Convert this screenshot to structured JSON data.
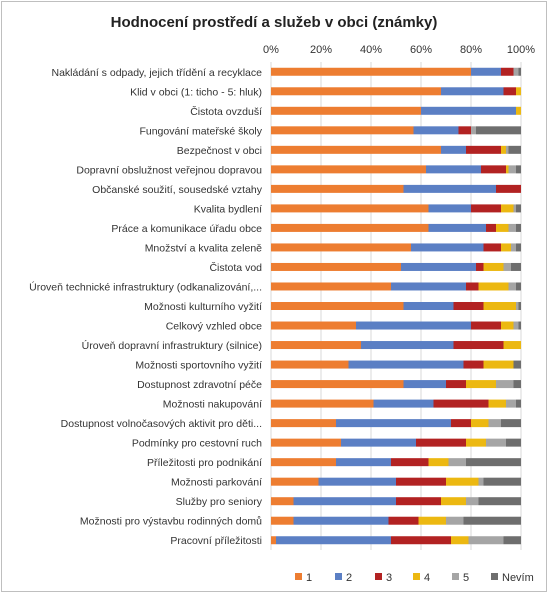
{
  "chart_data": {
    "type": "bar",
    "orientation": "horizontal",
    "stacked": "percent",
    "title": "Hodnocení prostředí a služeb v obci (známky)",
    "x_ticks": [
      "0%",
      "20%",
      "40%",
      "60%",
      "80%",
      "100%"
    ],
    "xlim": [
      0,
      100
    ],
    "grid": true,
    "legend_position": "bottom",
    "categories": [
      "Nakládání s odpady, jejich třídění a recyklace",
      "Klid v obci (1: ticho - 5: hluk)",
      "Čistota ovzduší",
      "Fungování mateřské školy",
      "Bezpečnost v obci",
      "Dopravní obslužnost veřejnou dopravou",
      "Občanské soužití, sousedské vztahy",
      "Kvalita bydlení",
      "Práce a komunikace úřadu obce",
      "Množství a kvalita zeleně",
      "Čistota vod",
      "Úroveň technické infrastruktury (odkanalizování,...",
      "Možnosti kulturního vyžití",
      "Celkový vzhled obce",
      "Úroveň dopravní infrastruktury (silnice)",
      "Možnosti sportovního vyžití",
      "Dostupnost zdravotní péče",
      "Možnosti nakupování",
      "Dostupnost volnočasových aktivit pro děti...",
      "Podmínky pro cestovní ruch",
      "Příležitosti pro podnikání",
      "Možnosti parkování",
      "Služby pro seniory",
      "Možnosti pro výstavbu rodinných domů",
      "Pracovní příležitosti"
    ],
    "series": [
      {
        "name": "1",
        "color": "#ed7d31",
        "values": [
          80,
          68,
          60,
          57,
          68,
          62,
          53,
          63,
          63,
          56,
          52,
          48,
          53,
          34,
          36,
          31,
          53,
          41,
          26,
          28,
          26,
          19,
          9,
          9,
          2
        ]
      },
      {
        "name": "2",
        "color": "#5b7fc4",
        "values": [
          12,
          25,
          38,
          18,
          10,
          22,
          37,
          17,
          23,
          29,
          30,
          30,
          20,
          46,
          37,
          46,
          17,
          24,
          46,
          30,
          22,
          31,
          41,
          38,
          46
        ]
      },
      {
        "name": "3",
        "color": "#b22222",
        "values": [
          5,
          5,
          0,
          5,
          14,
          10,
          10,
          12,
          4,
          7,
          3,
          5,
          12,
          12,
          20,
          8,
          8,
          22,
          8,
          20,
          15,
          20,
          18,
          12,
          24
        ]
      },
      {
        "name": "4",
        "color": "#ecb811",
        "values": [
          0,
          2,
          2,
          0,
          2,
          1,
          0,
          5,
          5,
          4,
          8,
          12,
          13,
          5,
          7,
          12,
          12,
          7,
          7,
          8,
          8,
          13,
          10,
          11,
          7
        ]
      },
      {
        "name": "5",
        "color": "#a5a5a5",
        "values": [
          2,
          0,
          0,
          2,
          1,
          3,
          0,
          1,
          3,
          2,
          3,
          3,
          1,
          2,
          0,
          0,
          7,
          4,
          5,
          8,
          7,
          2,
          5,
          7,
          14
        ]
      },
      {
        "name": "Nevím",
        "color": "#6e6e6e",
        "values": [
          1,
          0,
          0,
          18,
          5,
          2,
          0,
          2,
          2,
          2,
          4,
          2,
          1,
          1,
          0,
          3,
          3,
          2,
          8,
          6,
          22,
          15,
          17,
          23,
          7
        ]
      }
    ]
  }
}
